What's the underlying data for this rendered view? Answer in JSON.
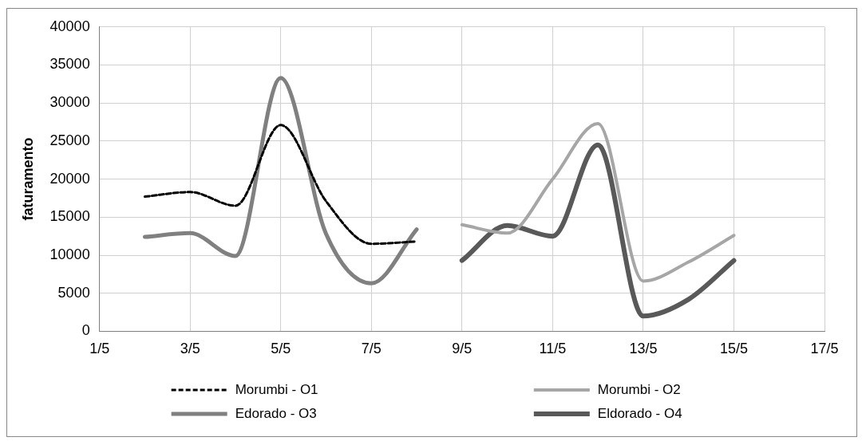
{
  "chart_data": {
    "type": "line",
    "ylabel": "faturamento",
    "xlim": [
      "--05-01",
      "--05-17"
    ],
    "xticks": [
      {
        "value": "--05-01",
        "label": "1/5"
      },
      {
        "value": "--05-03",
        "label": "3/5"
      },
      {
        "value": "--05-05",
        "label": "5/5"
      },
      {
        "value": "--05-07",
        "label": "7/5"
      },
      {
        "value": "--05-09",
        "label": "9/5"
      },
      {
        "value": "--05-11",
        "label": "11/5"
      },
      {
        "value": "--05-13",
        "label": "13/5"
      },
      {
        "value": "--05-15",
        "label": "15/5"
      },
      {
        "value": "--05-17",
        "label": "17/5"
      }
    ],
    "ylim": [
      0,
      40000
    ],
    "yticks": [
      0,
      5000,
      10000,
      15000,
      20000,
      25000,
      30000,
      35000,
      40000
    ],
    "grid": true,
    "legend": "bottom",
    "marker": "none",
    "series": [
      {
        "name": "Morumbi - O1",
        "color": "#000000",
        "line_style": "dashed",
        "x": [
          "--05-02",
          "--05-03",
          "--05-04",
          "--05-05",
          "--05-06",
          "--05-07",
          "--05-08"
        ],
        "values": [
          17700,
          18300,
          16500,
          27100,
          17100,
          11500,
          11800
        ]
      },
      {
        "name": "Morumbi - O2",
        "color": "#a6a6a6",
        "line_style": "solid",
        "x": [
          "--05-09",
          "--05-10",
          "--05-11",
          "--05-12",
          "--05-13",
          "--05-14",
          "--05-15"
        ],
        "values": [
          14000,
          12900,
          20000,
          27300,
          6600,
          9100,
          12600
        ]
      },
      {
        "name": "Edorado - O3",
        "color": "#808080",
        "line_style": "solid",
        "x": [
          "--05-02",
          "--05-03",
          "--05-04",
          "--05-05",
          "--05-06",
          "--05-07",
          "--05-08"
        ],
        "values": [
          12400,
          12900,
          9900,
          33300,
          12800,
          6300,
          13400
        ]
      },
      {
        "name": "Eldorado - O4",
        "color": "#595959",
        "line_style": "solid",
        "x": [
          "--05-09",
          "--05-10",
          "--05-11",
          "--05-12",
          "--05-13",
          "--05-14",
          "--05-15"
        ],
        "values": [
          9300,
          13900,
          12500,
          24500,
          2000,
          4200,
          9300
        ]
      }
    ]
  }
}
